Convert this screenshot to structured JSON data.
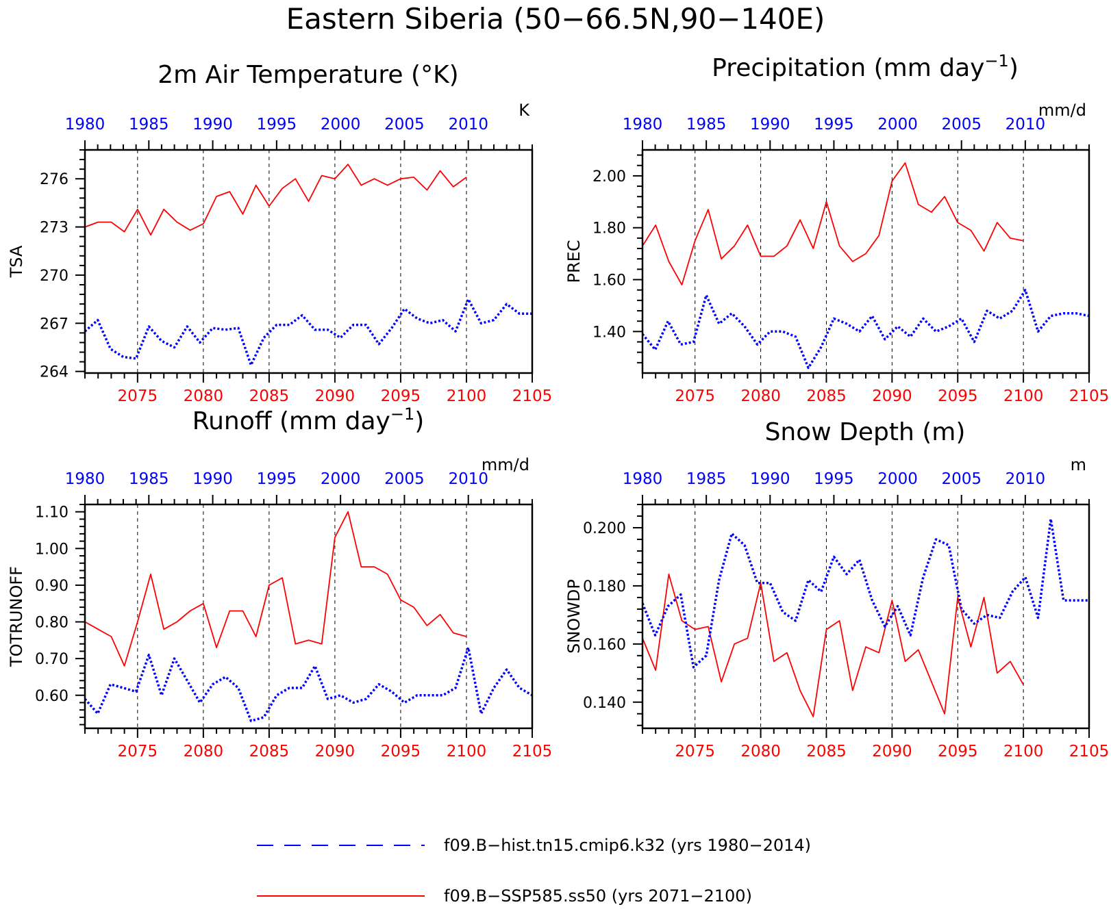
{
  "title": "Eastern Siberia (50−66.5N,90−140E)",
  "colors": {
    "hist": "#0000ff",
    "ssp": "#ff0000",
    "axis": "#000000"
  },
  "legend": {
    "items": [
      {
        "label": "f09.B−hist.tn15.cmip6.k32 (yrs 1980−2014)",
        "color": "#0000ff",
        "style": "dashed"
      },
      {
        "label": "f09.B−SSP585.ss50 (yrs 2071−2100)",
        "color": "#ff0000",
        "style": "solid"
      }
    ]
  },
  "chart_data": [
    {
      "type": "line",
      "title": "2m Air Temperature (°K)",
      "ylabel": "TSA",
      "units": "K",
      "ylim": [
        263.9,
        277.8
      ],
      "yticks": [
        264,
        267,
        270,
        273,
        276
      ],
      "ytick_labels": [
        "264",
        "267",
        "270",
        "273",
        "276"
      ],
      "top_axis": {
        "ticks": [
          1980,
          1985,
          1990,
          1995,
          2000,
          2005,
          2010
        ],
        "range": [
          1980,
          2015
        ]
      },
      "bottom_axis": {
        "ticks": [
          2075,
          2080,
          2085,
          2090,
          2095,
          2100,
          2105
        ],
        "range": [
          2071,
          2105
        ]
      },
      "series": [
        {
          "color": "#ff0000",
          "style": "solid",
          "axis": "bottom",
          "x": [
            2071,
            2072,
            2073,
            2074,
            2075,
            2076,
            2077,
            2078,
            2079,
            2080,
            2081,
            2082,
            2083,
            2084,
            2085,
            2086,
            2087,
            2088,
            2089,
            2090,
            2091,
            2092,
            2093,
            2094,
            2095,
            2096,
            2097,
            2098,
            2099,
            2100
          ],
          "values": [
            273.0,
            273.3,
            273.3,
            272.7,
            274.1,
            272.5,
            274.1,
            273.3,
            272.8,
            273.2,
            274.9,
            275.2,
            273.8,
            275.6,
            274.3,
            275.4,
            276.0,
            274.6,
            276.2,
            276.0,
            276.9,
            275.6,
            276.0,
            275.6,
            276.0,
            276.1,
            275.3,
            276.5,
            275.5,
            276.1
          ]
        },
        {
          "color": "#0000ff",
          "style": "dotted",
          "axis": "top",
          "x": [
            1980,
            1981,
            1982,
            1983,
            1984,
            1985,
            1986,
            1987,
            1988,
            1989,
            1990,
            1991,
            1992,
            1993,
            1994,
            1995,
            1996,
            1997,
            1998,
            1999,
            2000,
            2001,
            2002,
            2003,
            2004,
            2005,
            2006,
            2007,
            2008,
            2009,
            2010,
            2011,
            2012,
            2013,
            2014,
            2015
          ],
          "values": [
            266.5,
            267.2,
            265.4,
            264.9,
            264.8,
            266.8,
            265.9,
            265.5,
            266.8,
            265.8,
            266.7,
            266.6,
            266.7,
            264.4,
            266.1,
            266.9,
            266.9,
            267.5,
            266.6,
            266.6,
            266.1,
            266.9,
            266.9,
            265.7,
            266.7,
            267.9,
            267.3,
            267.0,
            267.2,
            266.5,
            268.5,
            267.0,
            267.2,
            268.2,
            267.6,
            267.6
          ]
        }
      ]
    },
    {
      "type": "line",
      "title": "Precipitation (mm day",
      "title_sup": "−1",
      "title_end": ")",
      "ylabel": "PREC",
      "units": "mm/d",
      "ylim": [
        1.24,
        2.1
      ],
      "yticks": [
        1.4,
        1.6,
        1.8,
        2.0
      ],
      "ytick_labels": [
        "1.40",
        "1.60",
        "1.80",
        "2.00"
      ],
      "top_axis": {
        "ticks": [
          1980,
          1985,
          1990,
          1995,
          2000,
          2005,
          2010
        ],
        "range": [
          1980,
          2015
        ]
      },
      "bottom_axis": {
        "ticks": [
          2075,
          2080,
          2085,
          2090,
          2095,
          2100,
          2105
        ],
        "range": [
          2071,
          2105
        ]
      },
      "series": [
        {
          "color": "#ff0000",
          "style": "solid",
          "axis": "bottom",
          "x": [
            2071,
            2072,
            2073,
            2074,
            2075,
            2076,
            2077,
            2078,
            2079,
            2080,
            2081,
            2082,
            2083,
            2084,
            2085,
            2086,
            2087,
            2088,
            2089,
            2090,
            2091,
            2092,
            2093,
            2094,
            2095,
            2096,
            2097,
            2098,
            2099,
            2100
          ],
          "values": [
            1.73,
            1.81,
            1.67,
            1.58,
            1.75,
            1.87,
            1.68,
            1.73,
            1.81,
            1.69,
            1.69,
            1.73,
            1.83,
            1.72,
            1.9,
            1.73,
            1.67,
            1.7,
            1.77,
            1.98,
            2.05,
            1.89,
            1.86,
            1.92,
            1.82,
            1.79,
            1.71,
            1.82,
            1.76,
            1.75
          ]
        },
        {
          "color": "#0000ff",
          "style": "dotted",
          "axis": "top",
          "x": [
            1980,
            1981,
            1982,
            1983,
            1984,
            1985,
            1986,
            1987,
            1988,
            1989,
            1990,
            1991,
            1992,
            1993,
            1994,
            1995,
            1996,
            1997,
            1998,
            1999,
            2000,
            2001,
            2002,
            2003,
            2004,
            2005,
            2006,
            2007,
            2008,
            2009,
            2010,
            2011,
            2012,
            2013,
            2014,
            2015
          ],
          "values": [
            1.39,
            1.33,
            1.44,
            1.35,
            1.36,
            1.54,
            1.43,
            1.47,
            1.42,
            1.35,
            1.4,
            1.4,
            1.38,
            1.26,
            1.34,
            1.45,
            1.43,
            1.4,
            1.46,
            1.37,
            1.42,
            1.38,
            1.45,
            1.4,
            1.42,
            1.45,
            1.36,
            1.48,
            1.45,
            1.48,
            1.56,
            1.4,
            1.46,
            1.47,
            1.47,
            1.46
          ]
        }
      ]
    },
    {
      "type": "line",
      "title": "Runoff (mm day",
      "title_sup": "−1",
      "title_end": ")",
      "ylabel": "TOTRUNOFF",
      "units": "mm/d",
      "ylim": [
        0.51,
        1.12
      ],
      "yticks": [
        0.6,
        0.7,
        0.8,
        0.9,
        1.0,
        1.1
      ],
      "ytick_labels": [
        "0.60",
        "0.70",
        "0.80",
        "0.90",
        "1.00",
        "1.10"
      ],
      "top_axis": {
        "ticks": [
          1980,
          1985,
          1990,
          1995,
          2000,
          2005,
          2010
        ],
        "range": [
          1980,
          2015
        ]
      },
      "bottom_axis": {
        "ticks": [
          2075,
          2080,
          2085,
          2090,
          2095,
          2100,
          2105
        ],
        "range": [
          2071,
          2105
        ]
      },
      "series": [
        {
          "color": "#ff0000",
          "style": "solid",
          "axis": "bottom",
          "x": [
            2071,
            2072,
            2073,
            2074,
            2075,
            2076,
            2077,
            2078,
            2079,
            2080,
            2081,
            2082,
            2083,
            2084,
            2085,
            2086,
            2087,
            2088,
            2089,
            2090,
            2091,
            2092,
            2093,
            2094,
            2095,
            2096,
            2097,
            2098,
            2099,
            2100
          ],
          "values": [
            0.8,
            0.78,
            0.76,
            0.68,
            0.8,
            0.93,
            0.78,
            0.8,
            0.83,
            0.85,
            0.73,
            0.83,
            0.83,
            0.76,
            0.9,
            0.92,
            0.74,
            0.75,
            0.74,
            1.03,
            1.1,
            0.95,
            0.95,
            0.93,
            0.86,
            0.84,
            0.79,
            0.82,
            0.77,
            0.76
          ]
        },
        {
          "color": "#0000ff",
          "style": "dotted",
          "axis": "top",
          "x": [
            1980,
            1981,
            1982,
            1983,
            1984,
            1985,
            1986,
            1987,
            1988,
            1989,
            1990,
            1991,
            1992,
            1993,
            1994,
            1995,
            1996,
            1997,
            1998,
            1999,
            2000,
            2001,
            2002,
            2003,
            2004,
            2005,
            2006,
            2007,
            2008,
            2009,
            2010,
            2011,
            2012,
            2013,
            2014,
            2015
          ],
          "values": [
            0.59,
            0.55,
            0.63,
            0.62,
            0.61,
            0.71,
            0.6,
            0.7,
            0.64,
            0.58,
            0.63,
            0.65,
            0.62,
            0.53,
            0.54,
            0.6,
            0.62,
            0.62,
            0.68,
            0.59,
            0.6,
            0.58,
            0.59,
            0.63,
            0.61,
            0.58,
            0.6,
            0.6,
            0.6,
            0.62,
            0.73,
            0.55,
            0.62,
            0.67,
            0.62,
            0.6
          ]
        }
      ]
    },
    {
      "type": "line",
      "title": "Snow Depth (m)",
      "ylabel": "SNOWDP",
      "units": "m",
      "ylim": [
        0.131,
        0.208
      ],
      "yticks": [
        0.14,
        0.16,
        0.18,
        0.2
      ],
      "ytick_labels": [
        "0.140",
        "0.160",
        "0.180",
        "0.200"
      ],
      "top_axis": {
        "ticks": [
          1980,
          1985,
          1990,
          1995,
          2000,
          2005,
          2010
        ],
        "range": [
          1980,
          2015
        ]
      },
      "bottom_axis": {
        "ticks": [
          2075,
          2080,
          2085,
          2090,
          2095,
          2100,
          2105
        ],
        "range": [
          2071,
          2105
        ]
      },
      "series": [
        {
          "color": "#ff0000",
          "style": "solid",
          "axis": "bottom",
          "x": [
            2071,
            2072,
            2073,
            2074,
            2075,
            2076,
            2077,
            2078,
            2079,
            2080,
            2081,
            2082,
            2083,
            2084,
            2085,
            2086,
            2087,
            2088,
            2089,
            2090,
            2091,
            2092,
            2093,
            2094,
            2095,
            2096,
            2097,
            2098,
            2099,
            2100
          ],
          "values": [
            0.162,
            0.151,
            0.184,
            0.168,
            0.165,
            0.166,
            0.147,
            0.16,
            0.162,
            0.181,
            0.154,
            0.157,
            0.144,
            0.135,
            0.165,
            0.168,
            0.144,
            0.159,
            0.157,
            0.175,
            0.154,
            0.158,
            0.147,
            0.136,
            0.176,
            0.159,
            0.176,
            0.15,
            0.154,
            0.146
          ]
        },
        {
          "color": "#0000ff",
          "style": "dotted",
          "axis": "top",
          "x": [
            1980,
            1981,
            1982,
            1983,
            1984,
            1985,
            1986,
            1987,
            1988,
            1989,
            1990,
            1991,
            1992,
            1993,
            1994,
            1995,
            1996,
            1997,
            1998,
            1999,
            2000,
            2001,
            2002,
            2003,
            2004,
            2005,
            2006,
            2007,
            2008,
            2009,
            2010,
            2011,
            2012,
            2013,
            2014,
            2015
          ],
          "values": [
            0.174,
            0.163,
            0.173,
            0.177,
            0.152,
            0.156,
            0.182,
            0.198,
            0.194,
            0.181,
            0.181,
            0.171,
            0.168,
            0.182,
            0.178,
            0.19,
            0.184,
            0.189,
            0.175,
            0.166,
            0.173,
            0.163,
            0.183,
            0.196,
            0.194,
            0.172,
            0.167,
            0.17,
            0.169,
            0.178,
            0.183,
            0.169,
            0.203,
            0.175,
            0.175,
            0.175
          ]
        }
      ]
    }
  ]
}
